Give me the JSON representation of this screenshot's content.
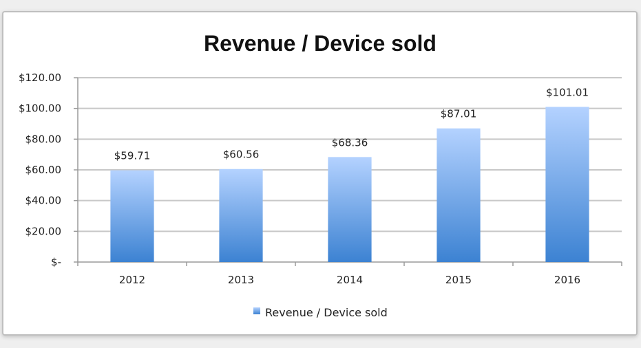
{
  "chart_data": {
    "type": "bar",
    "title": "Revenue / Device sold",
    "categories": [
      "2012",
      "2013",
      "2014",
      "2015",
      "2016"
    ],
    "series": [
      {
        "name": "Revenue / Device sold",
        "values": [
          59.71,
          60.56,
          68.36,
          87.01,
          101.01
        ],
        "data_labels": [
          "$59.71",
          "$60.56",
          "$68.36",
          "$87.01",
          "$101.01"
        ]
      }
    ],
    "ylim": [
      0,
      120
    ],
    "yticks": [
      0,
      20,
      40,
      60,
      80,
      100,
      120
    ],
    "ytick_labels": [
      "$-",
      "$20.00",
      "$40.00",
      "$60.00",
      "$80.00",
      "$100.00",
      "$120.00"
    ],
    "grid": true,
    "legend": "bottom",
    "colors": {
      "bar_top": "#b4d2ff",
      "bar_bottom": "#3c82d2",
      "grid": "#c8c8c8"
    }
  }
}
